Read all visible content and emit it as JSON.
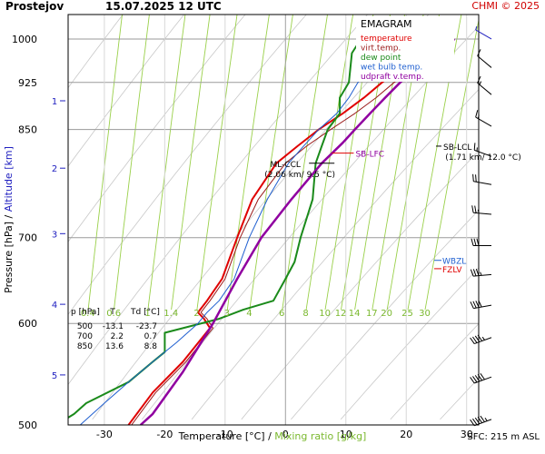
{
  "header": {
    "station": "Prostejov",
    "datetime": "15.07.2025 12 UTC",
    "copyright": "CHMI © 2025"
  },
  "footer": {
    "sfc": "SFC: 215 m ASL"
  },
  "colors": {
    "temperature": "#e00000",
    "virt_temp": "#9a1a1a",
    "dew_point": "#1a8a1a",
    "wet_bulb": "#1f5fd0",
    "updraft": "#9000a0",
    "mixing_ratio_lines": "#9ad04a",
    "mixing_ratio_text": "#7ab82e",
    "altitude": "#2020c0",
    "isobars": "#9a9a9a",
    "adiabats": "#c8c8c8"
  },
  "chart_data": {
    "type": "line",
    "title": "EMAGRAM",
    "xlabel": "Temperature [°C]",
    "xlabel_sep": "/",
    "xlabel2": "Mixing ratio [g/kg]",
    "ylabel": "Pressure [hPa]",
    "ylabel_sep": "/",
    "ylabel2": "Altitude [km]",
    "xlim": [
      -36,
      32
    ],
    "ylim": [
      1045,
      500
    ],
    "y_scale": "log",
    "x_ticks": [
      -30,
      -20,
      -10,
      0,
      10,
      20,
      30
    ],
    "y_ticks": [
      500,
      600,
      700,
      850,
      925,
      1000
    ],
    "altitude_ticks": [
      {
        "label": "1",
        "p": 895
      },
      {
        "label": "2",
        "p": 793
      },
      {
        "label": "3",
        "p": 705
      },
      {
        "label": "4",
        "p": 621
      },
      {
        "label": "5",
        "p": 547
      }
    ],
    "mixing_ratio_labels": [
      "0.4",
      "0.6",
      "1",
      "1.4",
      "2",
      "3",
      "4",
      "6",
      "8",
      "10",
      "12",
      "14",
      "17",
      "20",
      "25",
      "30"
    ],
    "mixing_ratio_label_pressure": 612,
    "legend": {
      "title": "EMAGRAM",
      "placement": "top-right",
      "entries": [
        {
          "key": "temperature",
          "label": "temperature"
        },
        {
          "key": "virt_temp",
          "label": "virt.temp."
        },
        {
          "key": "dew_point",
          "label": "dew point"
        },
        {
          "key": "wet_bulb",
          "label": "wet bulb temp."
        },
        {
          "key": "updraft",
          "label": "udpraft v.temp."
        }
      ]
    },
    "skew_degC_per_log10p": 95,
    "series": [
      {
        "name": "temperature",
        "color_key": "temperature",
        "width": 2.0,
        "x": [
          26,
          22,
          16,
          13,
          9.5,
          5.5,
          2,
          -1.5,
          -5.5,
          -8,
          -10.5,
          -13,
          -14.5,
          -13.5,
          -12.5,
          -17,
          -22,
          -26
        ],
        "y": [
          1000,
          975,
          925,
          900,
          875,
          850,
          825,
          800,
          750,
          700,
          650,
          625,
          612,
          605,
          595,
          560,
          530,
          500
        ]
      },
      {
        "name": "virt.temp.",
        "color_key": "virt_temp",
        "width": 1.0,
        "x": [
          28,
          24,
          18,
          15,
          11.5,
          7.5,
          3.5,
          0,
          -4.5,
          -7.5,
          -10,
          -12.5,
          -14,
          -13,
          -12,
          -16.5,
          -21.5,
          -25.5
        ],
        "y": [
          1000,
          975,
          925,
          900,
          875,
          850,
          825,
          800,
          750,
          700,
          650,
          625,
          612,
          605,
          595,
          560,
          530,
          500
        ]
      },
      {
        "name": "dew point",
        "color_key": "dew_point",
        "width": 2.0,
        "x": [
          12.5,
          11,
          10.5,
          9,
          9,
          7,
          6,
          5,
          4.5,
          2.5,
          1.5,
          0,
          -2,
          -7,
          -11,
          -20,
          -20,
          -22,
          -26,
          -33,
          -35,
          -38
        ],
        "y": [
          1000,
          975,
          925,
          900,
          875,
          850,
          825,
          800,
          750,
          700,
          670,
          650,
          625,
          615,
          605,
          590,
          570,
          560,
          540,
          520,
          510,
          500
        ]
      },
      {
        "name": "wet bulb temp.",
        "color_key": "wet_bulb",
        "width": 1.0,
        "x": [
          17,
          15,
          12,
          10.5,
          8.5,
          5.5,
          3,
          0.5,
          -3,
          -6,
          -8.5,
          -11,
          -13,
          -14.5,
          -18,
          -22,
          -26,
          -30,
          -34
        ],
        "y": [
          1000,
          975,
          925,
          900,
          875,
          850,
          825,
          800,
          750,
          700,
          650,
          625,
          612,
          600,
          580,
          560,
          540,
          520,
          500
        ]
      },
      {
        "name": "udpraft v.temp.",
        "color_key": "updraft",
        "width": 2.5,
        "x": [
          28,
          24,
          19,
          16.5,
          14,
          11.5,
          9.5,
          6,
          1,
          -4,
          -8,
          -12,
          -17,
          -22,
          -24
        ],
        "y": [
          1000,
          975,
          925,
          900,
          875,
          850,
          830,
          800,
          750,
          700,
          650,
          600,
          550,
          510,
          500
        ]
      }
    ],
    "annotations": [
      {
        "label": "ML-CCL",
        "label2": "(2.06 km/ 9.5 °C)",
        "p": 800,
        "t": 6,
        "color": "#000000"
      },
      {
        "label": "SB-LFC",
        "label2": "",
        "p": 820,
        "t": 9.5,
        "color": "#9000a0"
      },
      {
        "label": "SB-LCL",
        "label2": "(1.71 km/ 12.0 °C)",
        "p": 825,
        "t": 12,
        "color": "#000000"
      },
      {
        "label": "FZLV",
        "label2": "",
        "p": 662,
        "t": 0,
        "color": "#e00000"
      },
      {
        "label": "WBZL",
        "label2": "",
        "p": 672,
        "t": 0,
        "color": "#1f5fd0"
      }
    ],
    "table": {
      "headers": [
        "p [hPa]",
        "T",
        "Td [°C]"
      ],
      "rows": [
        [
          "500",
          "-13.1",
          "-23.7"
        ],
        [
          "700",
          "2.2",
          "0.7"
        ],
        [
          "850",
          "13.6",
          "8.8"
        ]
      ]
    },
    "wind_barbs": [
      {
        "p": 505,
        "dir": 250,
        "speed_kt": 55
      },
      {
        "p": 545,
        "dir": 250,
        "speed_kt": 50
      },
      {
        "p": 585,
        "dir": 250,
        "speed_kt": 45
      },
      {
        "p": 620,
        "dir": 260,
        "speed_kt": 40
      },
      {
        "p": 655,
        "dir": 265,
        "speed_kt": 35
      },
      {
        "p": 690,
        "dir": 270,
        "speed_kt": 30
      },
      {
        "p": 730,
        "dir": 275,
        "speed_kt": 25
      },
      {
        "p": 770,
        "dir": 280,
        "speed_kt": 20
      },
      {
        "p": 810,
        "dir": 290,
        "speed_kt": 15
      },
      {
        "p": 855,
        "dir": 300,
        "speed_kt": 15
      },
      {
        "p": 905,
        "dir": 310,
        "speed_kt": 15
      },
      {
        "p": 950,
        "dir": 310,
        "speed_kt": 10
      },
      {
        "p": 1000,
        "dir": 300,
        "speed_kt": 5
      }
    ]
  }
}
